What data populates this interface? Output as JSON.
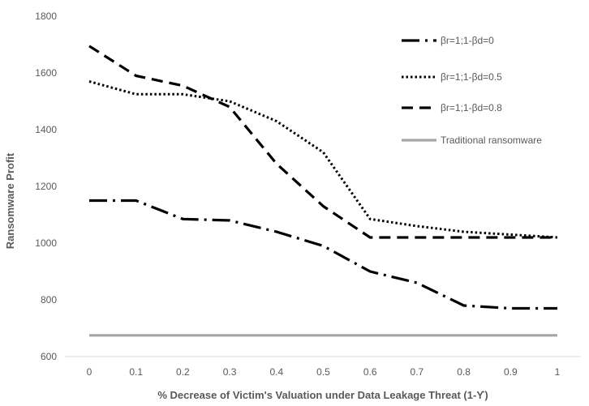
{
  "chart_data": {
    "type": "line",
    "title": "",
    "xlabel": "% Decrease of Victim's Valuation under Data Leakage Threat (1-ϒ)",
    "ylabel": "Ransomware Profit",
    "x": [
      0,
      0.1,
      0.2,
      0.3,
      0.4,
      0.5,
      0.6,
      0.7,
      0.8,
      0.9,
      1
    ],
    "x_tick_labels": [
      "0",
      "0.1",
      "0.2",
      "0.3",
      "0.4",
      "0.5",
      "0.6",
      "0.7",
      "0.8",
      "0.9",
      "1"
    ],
    "ylim": [
      600,
      1800
    ],
    "y_ticks": [
      600,
      800,
      1000,
      1200,
      1400,
      1600,
      1800
    ],
    "y_tick_labels": [
      "600",
      "800",
      "1000",
      "1200",
      "1400",
      "1600",
      "1800"
    ],
    "grid": false,
    "legend_position": "top-right",
    "series": [
      {
        "name": "βr=1;1-βd=0",
        "style": "long-dash-dot",
        "color": "#000000",
        "values": [
          1150,
          1150,
          1085,
          1080,
          1040,
          990,
          900,
          860,
          780,
          770,
          770
        ]
      },
      {
        "name": "βr=1;1-βd=0.5",
        "style": "dotted",
        "color": "#000000",
        "values": [
          1570,
          1525,
          1525,
          1500,
          1430,
          1320,
          1085,
          1060,
          1040,
          1030,
          1020
        ]
      },
      {
        "name": "βr=1;1-βd=0.8",
        "style": "dashed",
        "color": "#000000",
        "values": [
          1695,
          1590,
          1555,
          1480,
          1280,
          1130,
          1020,
          1020,
          1020,
          1020,
          1020
        ]
      },
      {
        "name": "Traditional ransomware",
        "style": "solid",
        "color": "#a6a6a6",
        "values": [
          675,
          675,
          675,
          675,
          675,
          675,
          675,
          675,
          675,
          675,
          675
        ]
      }
    ]
  }
}
